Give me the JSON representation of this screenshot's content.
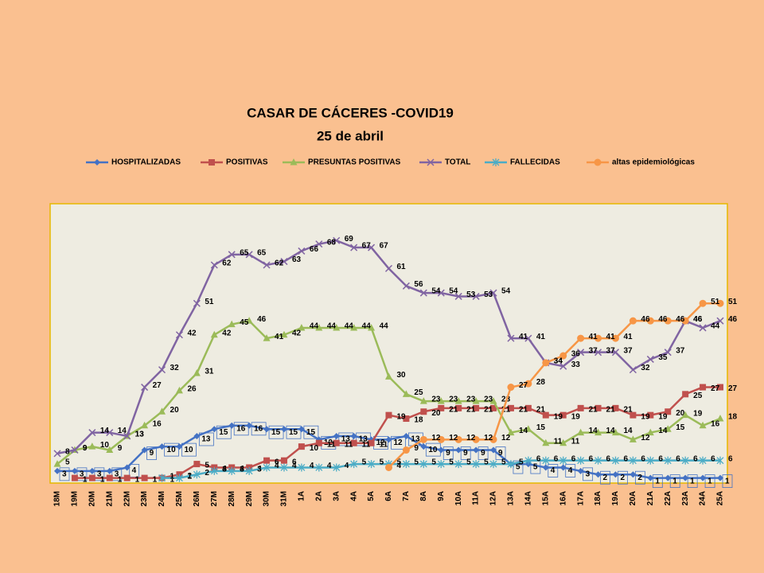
{
  "chart_data": {
    "type": "line",
    "title": "CASAR DE CÁCERES -COVID19",
    "subtitle": "25 de abril",
    "categories": [
      "18M",
      "19M",
      "20M",
      "21M",
      "22M",
      "23M",
      "24M",
      "25M",
      "26M",
      "27M",
      "28M",
      "29M",
      "30M",
      "31M",
      "1A",
      "2A",
      "3A",
      "4A",
      "5A",
      "6A",
      "7A",
      "8A",
      "9A",
      "10A",
      "11A",
      "12A",
      "13A",
      "14A",
      "15A",
      "16A",
      "17A",
      "18A",
      "19A",
      "20A",
      "21A",
      "22A",
      "23A",
      "24A",
      "25A"
    ],
    "ylim": [
      0,
      80
    ],
    "series": [
      {
        "name": "HOSPITALIZADAS",
        "color": "#4472C4",
        "values": [
          3,
          3,
          3,
          3,
          4,
          9,
          10,
          10,
          13,
          15,
          16,
          16,
          15,
          15,
          15,
          12,
          13,
          13,
          12,
          12,
          13,
          10,
          9,
          9,
          9,
          9,
          5,
          5,
          4,
          4,
          3,
          2,
          2,
          2,
          1,
          1,
          1,
          1,
          1
        ]
      },
      {
        "name": "POSITIVAS",
        "color": "#C0504D",
        "values": [
          null,
          1,
          1,
          1,
          1,
          1,
          1,
          2,
          5,
          4,
          4,
          4,
          6,
          6,
          10,
          11,
          11,
          11,
          11,
          19,
          18,
          20,
          21,
          21,
          21,
          21,
          21,
          21,
          19,
          19,
          21,
          21,
          21,
          19,
          19,
          20,
          25,
          27,
          27
        ]
      },
      {
        "name": "PRESUNTAS POSITIVAS",
        "color": "#9BBB59",
        "values": [
          5,
          9,
          10,
          9,
          13,
          16,
          20,
          26,
          31,
          42,
          45,
          46,
          41,
          42,
          44,
          44,
          44,
          44,
          44,
          30,
          25,
          23,
          23,
          23,
          23,
          23,
          14,
          15,
          11,
          11,
          14,
          14,
          14,
          12,
          14,
          15,
          19,
          16,
          18
        ]
      },
      {
        "name": "TOTAL",
        "color": "#8064A2",
        "values": [
          8,
          9,
          14,
          14,
          13,
          27,
          32,
          42,
          51,
          62,
          65,
          65,
          62,
          63,
          66,
          68,
          69,
          67,
          67,
          61,
          56,
          54,
          54,
          53,
          53,
          54,
          41,
          41,
          34,
          33,
          37,
          37,
          37,
          32,
          35,
          37,
          46,
          44,
          46
        ]
      },
      {
        "name": "FALLECIDAS",
        "color": "#4BACC6",
        "values": [
          null,
          null,
          null,
          null,
          null,
          null,
          1,
          1,
          2,
          3,
          3,
          3,
          4,
          4,
          4,
          4,
          4,
          5,
          5,
          5,
          5,
          5,
          5,
          5,
          5,
          5,
          5,
          6,
          6,
          6,
          6,
          6,
          6,
          6,
          6,
          6,
          6,
          6,
          6
        ]
      },
      {
        "name": "altas epidemiológicas",
        "color": "#F79646",
        "values": [
          null,
          null,
          null,
          null,
          null,
          null,
          null,
          null,
          null,
          null,
          null,
          null,
          null,
          null,
          null,
          null,
          null,
          null,
          null,
          4,
          9,
          12,
          12,
          12,
          12,
          12,
          27,
          28,
          34,
          36,
          41,
          41,
          41,
          46,
          46,
          46,
          46,
          51,
          51
        ]
      }
    ]
  }
}
